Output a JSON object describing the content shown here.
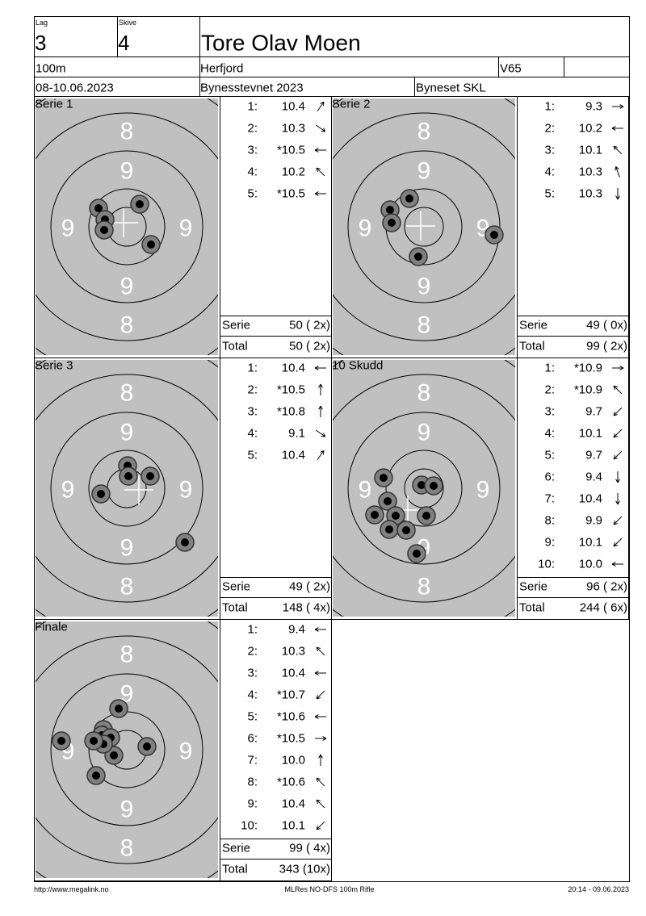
{
  "header": {
    "lag_label": "Lag",
    "lag": "3",
    "skive_label": "Skive",
    "skive": "4",
    "name": "Tore Olav Moen",
    "distance": "100m",
    "club": "Herfjord",
    "class": "V65",
    "date": "08-10.06.2023",
    "event": "Bynesstevnet 2023",
    "organizer": "Byneset SKL"
  },
  "target_labels": {
    "outer": "8",
    "inner": "9"
  },
  "panels": [
    {
      "title": "Serie 1",
      "shots": [
        {
          "n": "1:",
          "v": "10.4"
        },
        {
          "n": "2:",
          "v": "10.3"
        },
        {
          "n": "3:",
          "v": "*10.5"
        },
        {
          "n": "4:",
          "v": "10.2"
        },
        {
          "n": "5:",
          "v": "*10.5"
        }
      ],
      "serie_label": "Serie",
      "serie": "50 ( 2x)",
      "total_label": "Total",
      "total": "50 ( 2x)"
    },
    {
      "title": "Serie 2",
      "shots": [
        {
          "n": "1:",
          "v": "9.3"
        },
        {
          "n": "2:",
          "v": "10.2"
        },
        {
          "n": "3:",
          "v": "10.1"
        },
        {
          "n": "4:",
          "v": "10.3"
        },
        {
          "n": "5:",
          "v": "10.3"
        }
      ],
      "serie_label": "Serie",
      "serie": "49 ( 0x)",
      "total_label": "Total",
      "total": "99 ( 2x)"
    },
    {
      "title": "Serie 3",
      "shots": [
        {
          "n": "1:",
          "v": "10.4"
        },
        {
          "n": "2:",
          "v": "*10.5"
        },
        {
          "n": "3:",
          "v": "*10.8"
        },
        {
          "n": "4:",
          "v": "9.1"
        },
        {
          "n": "5:",
          "v": "10.4"
        }
      ],
      "serie_label": "Serie",
      "serie": "49 ( 2x)",
      "total_label": "Total",
      "total": "148 ( 4x)"
    },
    {
      "title": "10 Skudd",
      "shots": [
        {
          "n": "1:",
          "v": "*10.9"
        },
        {
          "n": "2:",
          "v": "*10.9"
        },
        {
          "n": "3:",
          "v": "9.7"
        },
        {
          "n": "4:",
          "v": "10.1"
        },
        {
          "n": "5:",
          "v": "9.7"
        },
        {
          "n": "6:",
          "v": "9.4"
        },
        {
          "n": "7:",
          "v": "10.4"
        },
        {
          "n": "8:",
          "v": "9.9"
        },
        {
          "n": "9:",
          "v": "10.1"
        },
        {
          "n": "10:",
          "v": "10.0"
        }
      ],
      "serie_label": "Serie",
      "serie": "96 ( 2x)",
      "total_label": "Total",
      "total": "244 ( 6x)"
    },
    {
      "title": "Finale",
      "shots": [
        {
          "n": "1:",
          "v": "9.4"
        },
        {
          "n": "2:",
          "v": "10.3"
        },
        {
          "n": "3:",
          "v": "10.4"
        },
        {
          "n": "4:",
          "v": "*10.7"
        },
        {
          "n": "5:",
          "v": "*10.6"
        },
        {
          "n": "6:",
          "v": "*10.5"
        },
        {
          "n": "7:",
          "v": "10.0"
        },
        {
          "n": "8:",
          "v": "*10.6"
        },
        {
          "n": "9:",
          "v": "10.4"
        },
        {
          "n": "10:",
          "v": "10.1"
        }
      ],
      "serie_label": "Serie",
      "serie": "99 ( 4x)",
      "total_label": "Total",
      "total": "343 (10x)"
    }
  ],
  "footer": {
    "url": "http://www.megalink.no",
    "software": "MLRes NO-DFS 100m Rifle",
    "timestamp": "20:14 - 09.06.2023"
  }
}
